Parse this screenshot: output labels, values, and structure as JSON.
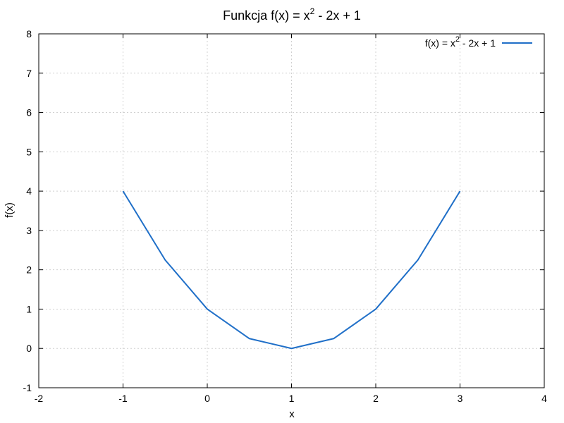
{
  "chart_data": {
    "type": "line",
    "title": {
      "base": "Funkcja f(x) = x",
      "sup": "2",
      "tail": " - 2x + 1"
    },
    "xlabel": "x",
    "ylabel": "f(x)",
    "xlim": [
      -2,
      4
    ],
    "ylim": [
      -1,
      8
    ],
    "xticks": [
      -2,
      -1,
      0,
      1,
      2,
      3,
      4
    ],
    "yticks": [
      -1,
      0,
      1,
      2,
      3,
      4,
      5,
      6,
      7,
      8
    ],
    "grid": true,
    "legend_position": "top-right",
    "series": [
      {
        "name": {
          "base": "f(x) = x",
          "sup": "2",
          "tail": " - 2x + 1"
        },
        "color": "#1f6fc8",
        "x": [
          -1,
          -0.5,
          0,
          0.5,
          1,
          1.5,
          2,
          2.5,
          3
        ],
        "y": [
          4,
          2.25,
          1,
          0.25,
          0,
          0.25,
          1,
          2.25,
          4
        ]
      }
    ],
    "line_clip_points": [
      [
        -0.9,
        8
      ],
      [
        2.87,
        8
      ]
    ]
  }
}
